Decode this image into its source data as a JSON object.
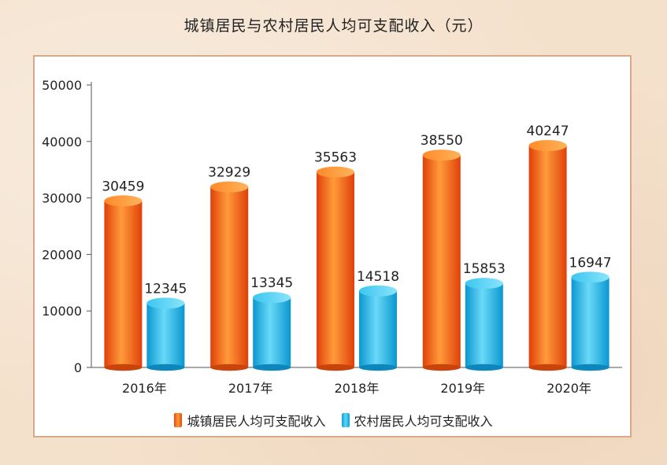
{
  "chart_data": {
    "type": "bar",
    "title": "城镇居民与农村居民人均可支配收入（元）",
    "categories": [
      "2016年",
      "2017年",
      "2018年",
      "2019年",
      "2020年"
    ],
    "series": [
      {
        "name": "城镇居民人均可支配收入",
        "values": [
          30459,
          32929,
          35563,
          38550,
          40247
        ],
        "color": "#f26a1b"
      },
      {
        "name": "农村居民人均可支配收入",
        "values": [
          12345,
          13345,
          14518,
          15853,
          16947
        ],
        "color": "#26b8e8"
      }
    ],
    "yticks": [
      "0",
      "10000",
      "20000",
      "30000",
      "40000",
      "50000"
    ],
    "ylim": [
      0,
      50000
    ],
    "grid": false,
    "legend_position": "bottom"
  },
  "colors": {
    "background": "#f4e1cc",
    "panel_border": "#d7a98a",
    "urban_bar": "#f26a1b",
    "rural_bar": "#26b8e8"
  }
}
